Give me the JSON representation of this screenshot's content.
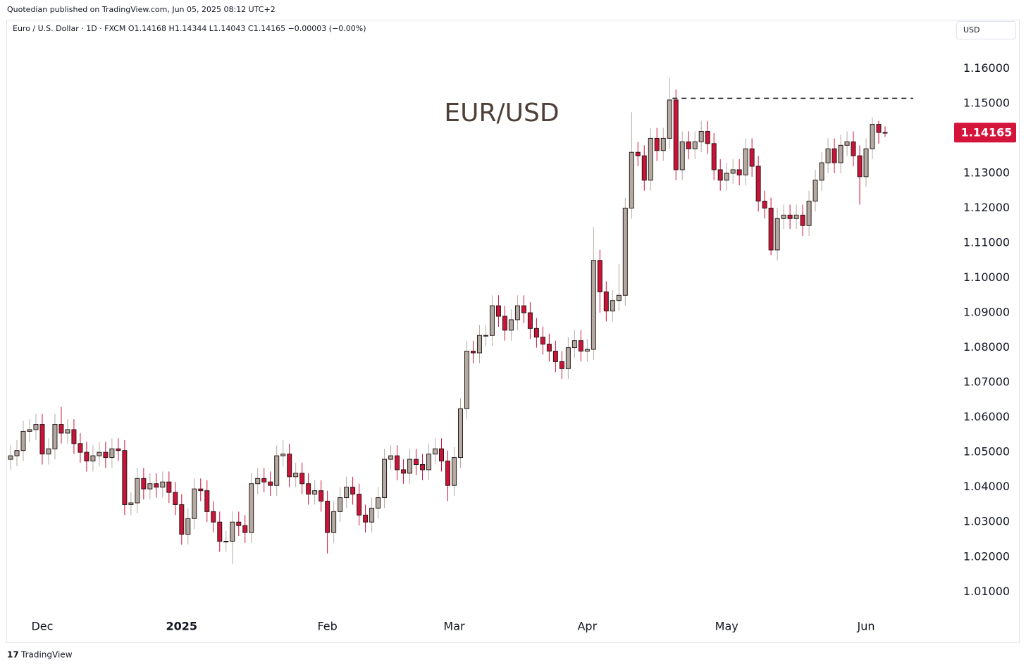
{
  "header": {
    "publisher": "Quotedian published on TradingView.com, Jun 05, 2025 08:12 UTC+2",
    "footer": "TradingView"
  },
  "chart_data": {
    "type": "candlestick",
    "legend": "Euro / U.S. Dollar · 1D · FXCM  O1.14168  H1.14344  L1.14043  C1.14165  −0.00003 (−0.00%)",
    "currency": "USD",
    "annotation": "EUR/USD",
    "resistance_level": 1.1515,
    "up_color": "#b3aba2",
    "down_color": "#cc1238",
    "tag_color": "#d5143c",
    "ylim": [
      1.004,
      1.174
    ],
    "yticks": [
      {
        "value": 1.01,
        "label": "1.01000"
      },
      {
        "value": 1.02,
        "label": "1.02000"
      },
      {
        "value": 1.03,
        "label": "1.03000"
      },
      {
        "value": 1.04,
        "label": "1.04000"
      },
      {
        "value": 1.05,
        "label": "1.05000"
      },
      {
        "value": 1.06,
        "label": "1.06000"
      },
      {
        "value": 1.07,
        "label": "1.07000"
      },
      {
        "value": 1.08,
        "label": "1.08000"
      },
      {
        "value": 1.09,
        "label": "1.09000"
      },
      {
        "value": 1.1,
        "label": "1.10000"
      },
      {
        "value": 1.11,
        "label": "1.11000"
      },
      {
        "value": 1.12,
        "label": "1.12000"
      },
      {
        "value": 1.13,
        "label": "1.13000"
      },
      {
        "value": 1.14,
        "label": "1.14000"
      },
      {
        "value": 1.15,
        "label": "1.15000"
      },
      {
        "value": 1.16,
        "label": "1.16000"
      }
    ],
    "categories": [
      null,
      null,
      null,
      null,
      null,
      "Dec",
      null,
      null,
      null,
      null,
      null,
      null,
      null,
      null,
      null,
      null,
      null,
      null,
      null,
      null,
      null,
      null,
      null,
      null,
      null,
      null,
      null,
      "2025",
      null,
      null,
      null,
      null,
      null,
      null,
      null,
      null,
      null,
      null,
      null,
      null,
      null,
      null,
      null,
      null,
      null,
      null,
      null,
      null,
      null,
      null,
      "Feb",
      null,
      null,
      null,
      null,
      null,
      null,
      null,
      null,
      null,
      null,
      null,
      null,
      null,
      null,
      null,
      null,
      null,
      null,
      null,
      "Mar",
      null,
      null,
      null,
      null,
      null,
      null,
      null,
      null,
      null,
      null,
      null,
      null,
      null,
      null,
      null,
      null,
      null,
      null,
      null,
      null,
      "Apr",
      null,
      null,
      null,
      null,
      null,
      null,
      null,
      null,
      null,
      null,
      null,
      null,
      null,
      null,
      null,
      null,
      null,
      null,
      null,
      null,
      null,
      "May",
      null,
      null,
      null,
      null,
      null,
      null,
      null,
      null,
      null,
      null,
      null,
      null,
      null,
      null,
      null,
      null,
      null,
      null,
      null,
      null,
      null,
      "Jun",
      null,
      null,
      null
    ],
    "open": [
      1.048,
      1.049,
      1.0505,
      1.056,
      1.0565,
      1.058,
      1.0495,
      1.051,
      1.058,
      1.0555,
      1.0565,
      1.0525,
      1.05,
      1.0475,
      1.049,
      1.05,
      1.0485,
      1.051,
      1.0505,
      1.035,
      1.0355,
      1.0425,
      1.0395,
      1.041,
      1.04,
      1.0415,
      1.0385,
      1.035,
      1.0265,
      1.031,
      1.0395,
      1.039,
      1.033,
      1.03,
      1.0245,
      1.0245,
      1.03,
      1.029,
      1.027,
      1.041,
      1.0425,
      1.0415,
      1.0405,
      1.049,
      1.0495,
      1.043,
      1.044,
      1.041,
      1.038,
      1.039,
      1.036,
      1.027,
      1.033,
      1.037,
      1.04,
      1.038,
      1.032,
      1.03,
      1.034,
      1.037,
      1.048,
      1.049,
      1.045,
      1.044,
      1.048,
      1.0465,
      1.045,
      1.0495,
      1.051,
      1.0475,
      1.0405,
      1.0485,
      1.0625,
      1.079,
      1.0785,
      1.0835,
      1.0835,
      1.092,
      1.089,
      1.085,
      1.088,
      1.092,
      1.09,
      1.0855,
      1.083,
      1.081,
      1.079,
      1.076,
      1.074,
      1.08,
      1.082,
      1.079,
      1.0795,
      1.105,
      1.096,
      1.0905,
      1.0935,
      1.095,
      1.12,
      1.136,
      1.135,
      1.128,
      1.14,
      1.1365,
      1.14,
      1.151,
      1.131,
      1.139,
      1.137,
      1.139,
      1.142,
      1.1385,
      1.131,
      1.128,
      1.13,
      1.131,
      1.1295,
      1.137,
      1.132,
      1.122,
      1.12,
      1.108,
      1.117,
      1.118,
      1.117,
      1.118,
      1.115,
      1.122,
      1.128,
      1.133,
      1.137,
      1.133,
      1.138,
      1.139,
      1.135,
      1.129,
      1.137,
      1.144,
      1.14168
    ],
    "high": [
      1.052,
      1.0535,
      1.059,
      1.0595,
      1.061,
      1.061,
      1.054,
      1.061,
      1.063,
      1.0595,
      1.0595,
      1.0555,
      1.053,
      1.052,
      1.053,
      1.053,
      1.054,
      1.054,
      1.0535,
      1.0385,
      1.0455,
      1.0455,
      1.044,
      1.044,
      1.0445,
      1.0445,
      1.0415,
      1.038,
      1.034,
      1.0425,
      1.0425,
      1.042,
      1.036,
      1.033,
      1.0275,
      1.033,
      1.033,
      1.032,
      1.044,
      1.0455,
      1.0455,
      1.0445,
      1.052,
      1.0535,
      1.0525,
      1.047,
      1.047,
      1.044,
      1.042,
      1.042,
      1.039,
      1.036,
      1.04,
      1.043,
      1.043,
      1.041,
      1.035,
      1.037,
      1.04,
      1.051,
      1.052,
      1.052,
      1.048,
      1.051,
      1.051,
      1.0495,
      1.0525,
      1.054,
      1.054,
      1.0505,
      1.0515,
      1.0655,
      1.082,
      1.082,
      1.0865,
      1.0865,
      1.095,
      1.095,
      1.092,
      1.091,
      1.095,
      1.095,
      1.093,
      1.0885,
      1.086,
      1.084,
      1.082,
      1.079,
      1.083,
      1.085,
      1.085,
      1.0825,
      1.1145,
      1.108,
      1.099,
      1.0965,
      1.104,
      1.123,
      1.1475,
      1.139,
      1.138,
      1.143,
      1.143,
      1.143,
      1.1573,
      1.154,
      1.142,
      1.142,
      1.142,
      1.145,
      1.145,
      1.1415,
      1.134,
      1.133,
      1.134,
      1.134,
      1.14,
      1.14,
      1.135,
      1.125,
      1.123,
      1.12,
      1.121,
      1.121,
      1.121,
      1.121,
      1.125,
      1.131,
      1.136,
      1.14,
      1.14,
      1.141,
      1.142,
      1.142,
      1.138,
      1.14,
      1.146,
      1.145,
      1.14344
    ],
    "low": [
      1.045,
      1.046,
      1.0475,
      1.053,
      1.0535,
      1.0465,
      1.0465,
      1.048,
      1.0525,
      1.0525,
      1.0495,
      1.047,
      1.0445,
      1.0445,
      1.046,
      1.0455,
      1.0455,
      1.0475,
      1.032,
      1.032,
      1.0325,
      1.0365,
      1.0365,
      1.037,
      1.037,
      1.0355,
      1.032,
      1.0235,
      1.0235,
      1.028,
      1.036,
      1.03,
      1.027,
      1.0215,
      1.0215,
      1.018,
      1.026,
      1.024,
      1.024,
      1.038,
      1.0385,
      1.0375,
      1.0375,
      1.046,
      1.04,
      1.04,
      1.038,
      1.035,
      1.035,
      1.033,
      1.021,
      1.024,
      1.03,
      1.034,
      1.035,
      1.029,
      1.027,
      1.027,
      1.031,
      1.034,
      1.045,
      1.042,
      1.041,
      1.041,
      1.0435,
      1.042,
      1.042,
      1.0465,
      1.0445,
      1.036,
      1.0375,
      1.0455,
      1.0595,
      1.0755,
      1.0755,
      1.0805,
      1.0805,
      1.086,
      1.082,
      1.082,
      1.085,
      1.087,
      1.0825,
      1.08,
      1.078,
      1.076,
      1.073,
      1.071,
      1.071,
      1.077,
      1.076,
      1.076,
      1.0765,
      1.09,
      1.0875,
      1.0875,
      1.0905,
      1.092,
      1.117,
      1.132,
      1.125,
      1.125,
      1.1335,
      1.1335,
      1.137,
      1.128,
      1.128,
      1.134,
      1.134,
      1.136,
      1.1355,
      1.128,
      1.125,
      1.125,
      1.127,
      1.1265,
      1.1265,
      1.129,
      1.119,
      1.117,
      1.1065,
      1.105,
      1.114,
      1.114,
      1.114,
      1.112,
      1.112,
      1.119,
      1.125,
      1.13,
      1.13,
      1.13,
      1.135,
      1.132,
      1.121,
      1.126,
      1.134,
      1.1385,
      1.14043
    ],
    "close": [
      1.049,
      1.0505,
      1.056,
      1.0565,
      1.058,
      1.0495,
      1.051,
      1.058,
      1.0555,
      1.0565,
      1.0525,
      1.05,
      1.0475,
      1.049,
      1.05,
      1.0485,
      1.051,
      1.0505,
      1.035,
      1.0355,
      1.0425,
      1.0395,
      1.041,
      1.04,
      1.0415,
      1.0385,
      1.035,
      1.0265,
      1.031,
      1.0395,
      1.039,
      1.033,
      1.03,
      1.0245,
      1.0245,
      1.03,
      1.029,
      1.027,
      1.041,
      1.0425,
      1.0415,
      1.0405,
      1.049,
      1.0495,
      1.043,
      1.044,
      1.041,
      1.038,
      1.039,
      1.036,
      1.027,
      1.033,
      1.037,
      1.04,
      1.038,
      1.032,
      1.03,
      1.034,
      1.037,
      1.048,
      1.049,
      1.045,
      1.044,
      1.048,
      1.0465,
      1.045,
      1.0495,
      1.051,
      1.0475,
      1.0405,
      1.0485,
      1.0625,
      1.079,
      1.0785,
      1.0835,
      1.0835,
      1.092,
      1.089,
      1.085,
      1.088,
      1.092,
      1.09,
      1.0855,
      1.083,
      1.081,
      1.079,
      1.076,
      1.074,
      1.08,
      1.082,
      1.079,
      1.0795,
      1.105,
      1.096,
      1.0905,
      1.0935,
      1.095,
      1.12,
      1.136,
      1.135,
      1.128,
      1.14,
      1.1365,
      1.14,
      1.151,
      1.131,
      1.139,
      1.137,
      1.139,
      1.142,
      1.1385,
      1.131,
      1.128,
      1.13,
      1.131,
      1.1295,
      1.137,
      1.132,
      1.122,
      1.12,
      1.108,
      1.117,
      1.118,
      1.117,
      1.118,
      1.115,
      1.122,
      1.128,
      1.133,
      1.137,
      1.133,
      1.138,
      1.139,
      1.135,
      1.129,
      1.137,
      1.144,
      1.14168,
      1.14165
    ]
  }
}
